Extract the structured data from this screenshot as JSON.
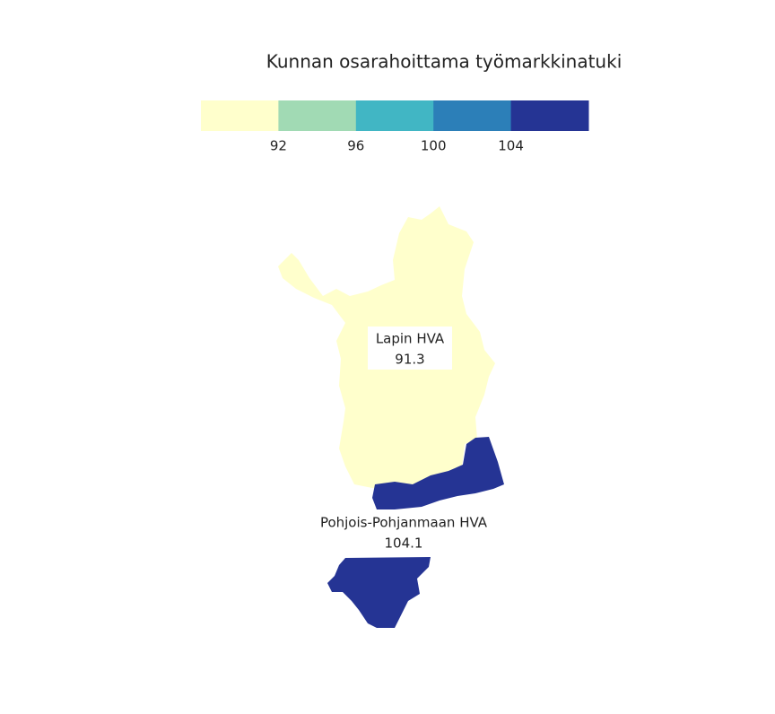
{
  "chart_data": {
    "type": "choropleth",
    "title": "Kunnan osarahoittama työmarkkinatuki",
    "legend_colors": [
      "#ffffcc",
      "#a1dab4",
      "#41b6c4",
      "#2c7fb8",
      "#253494"
    ],
    "legend_lim": [
      88,
      108
    ],
    "legend_ticks": [
      92,
      96,
      100,
      104
    ],
    "regions": [
      {
        "name": "Lapin HVA",
        "value": 91.3
      },
      {
        "name": "Pohjois-Pohjanmaan HVA",
        "value": 104.1
      }
    ]
  }
}
